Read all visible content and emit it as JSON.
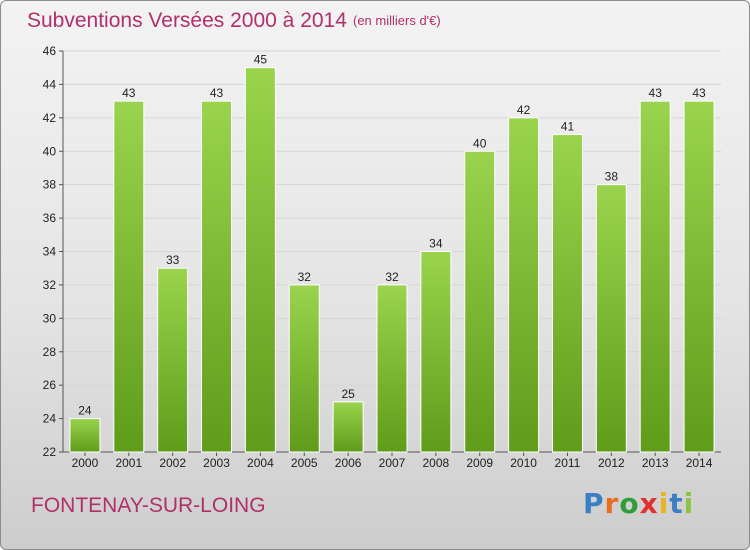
{
  "header": {
    "title": "Subventions Versées 2000 à 2014",
    "subtitle": "(en milliers d'€)"
  },
  "footer": {
    "commune": "FONTENAY-SUR-LOING",
    "logo_text": "Proxiti",
    "logo_colors": [
      "#3a7fc4",
      "#e86d1f",
      "#2f9d3a",
      "#e3302f",
      "#e8b420",
      "#3a7fc4",
      "#8bc53f"
    ]
  },
  "colors": {
    "bar_top": "#9ad44e",
    "bar_bottom": "#5f9c1a",
    "text_accent": "#b0306a",
    "gridline": "#d6d6d6"
  },
  "chart_data": {
    "type": "bar",
    "title": "Subventions Versées 2000 à 2014",
    "subtitle": "(en milliers d'€)",
    "xlabel": "",
    "ylabel": "",
    "categories": [
      "2000",
      "2001",
      "2002",
      "2003",
      "2004",
      "2005",
      "2006",
      "2007",
      "2008",
      "2009",
      "2010",
      "2011",
      "2012",
      "2013",
      "2014"
    ],
    "values": [
      24,
      43,
      33,
      43,
      45,
      32,
      25,
      32,
      34,
      40,
      42,
      41,
      38,
      43,
      43
    ],
    "ylim": [
      22,
      46
    ],
    "yticks": [
      22,
      24,
      26,
      28,
      30,
      32,
      34,
      36,
      38,
      40,
      42,
      44,
      46
    ],
    "grid": true,
    "data_labels": true
  }
}
